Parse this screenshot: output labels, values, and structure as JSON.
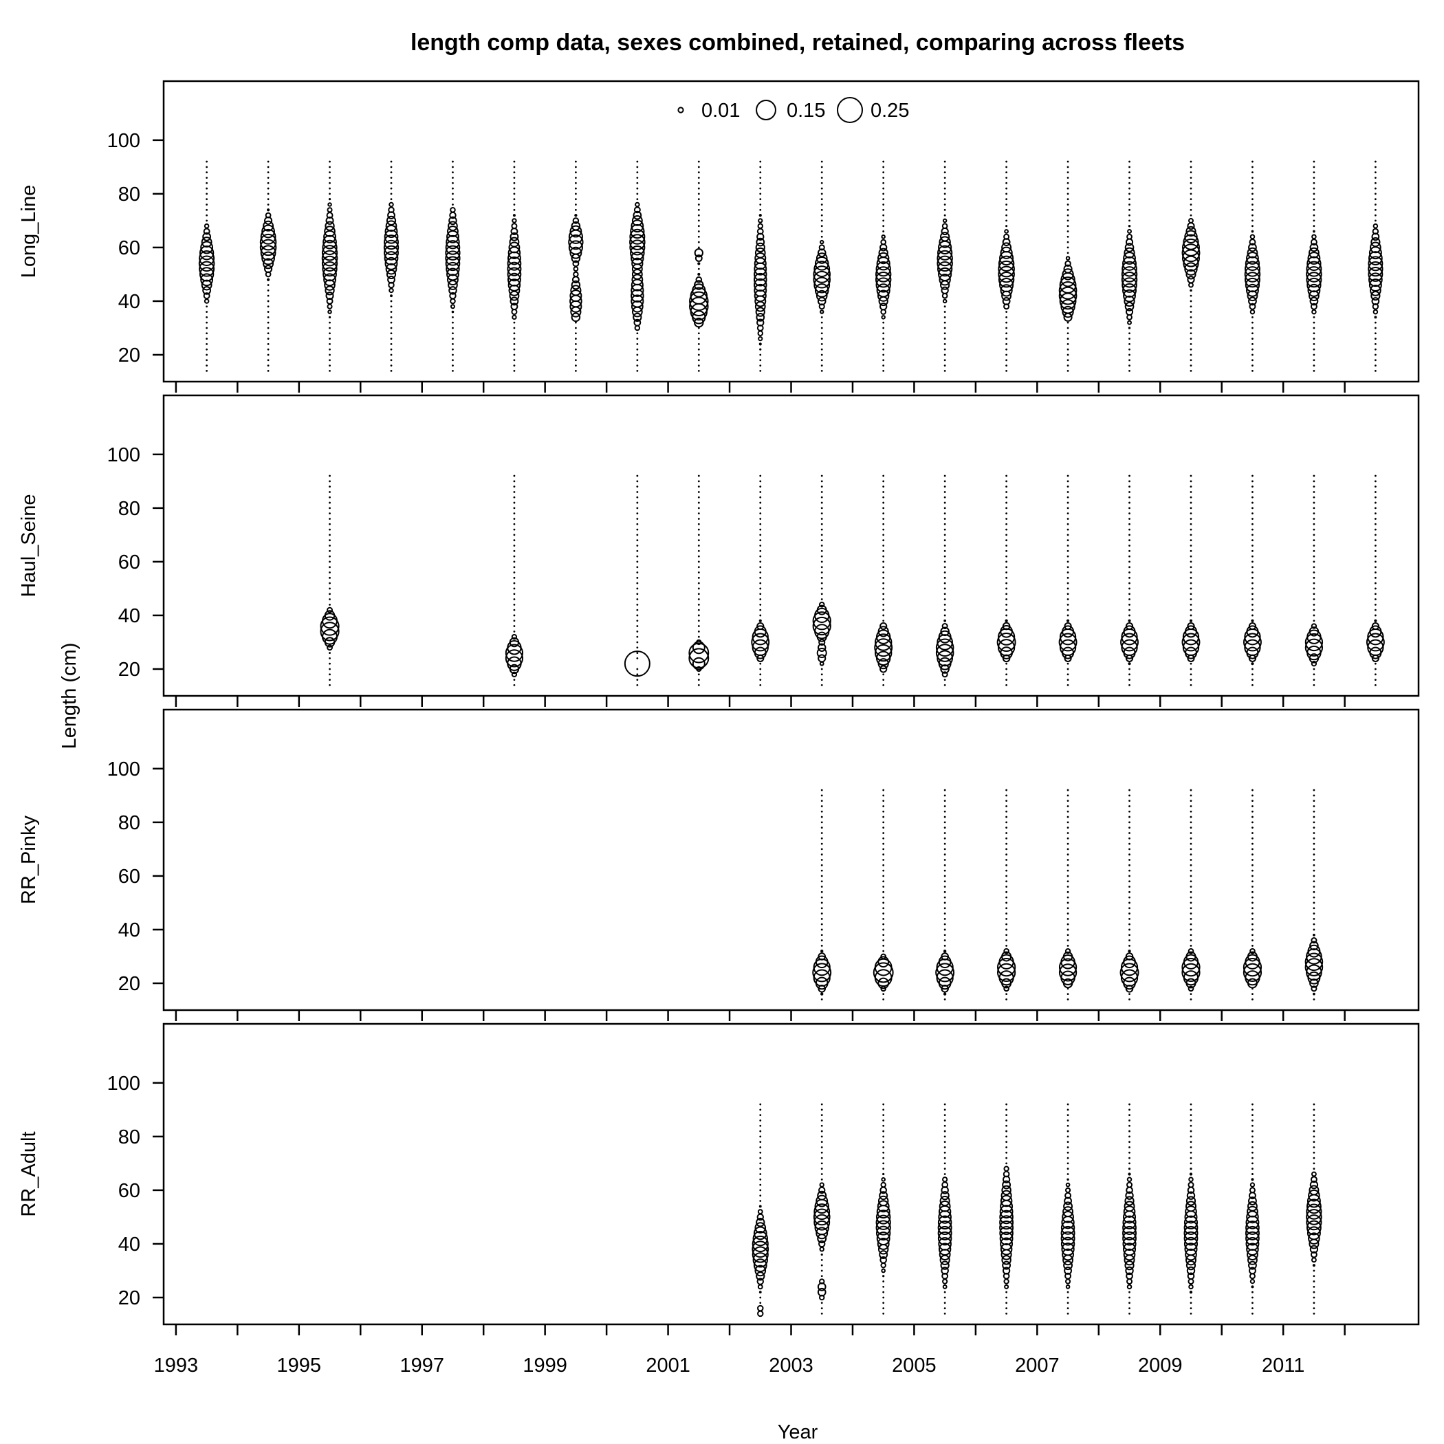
{
  "chart_data": {
    "type": "scatter",
    "subtype": "bubble",
    "title": "length comp data, sexes combined, retained, comparing across fleets",
    "xlabel": "Year",
    "ylabel": "Length (cm)",
    "xlim": [
      1992.8,
      2013.2
    ],
    "ylim": [
      10,
      122
    ],
    "x_ticks": [
      1993,
      1994,
      1995,
      1996,
      1997,
      1998,
      1999,
      2000,
      2001,
      2002,
      2003,
      2004,
      2005,
      2006,
      2007,
      2008,
      2009,
      2010,
      2011,
      2012
    ],
    "x_tick_labels": [
      "1993",
      "1995",
      "1997",
      "1999",
      "2001",
      "2003",
      "2005",
      "2007",
      "2009",
      "2011"
    ],
    "y_ticks": [
      20,
      40,
      60,
      80,
      100
    ],
    "y_tick_labels": [
      "20",
      "40",
      "60",
      "80",
      "100"
    ],
    "length_bins": {
      "min": 14,
      "max": 92,
      "step": 2
    },
    "legend": {
      "placement": "top-center",
      "values": [
        0.01,
        0.15,
        0.25
      ],
      "labels": [
        "0.01",
        "0.15",
        "0.25"
      ]
    },
    "series": [
      {
        "name": "Long_Line",
        "years": [
          {
            "year": 1993.5,
            "modes": [
              {
                "mean": 54,
                "sd": 6,
                "w": 1
              }
            ],
            "lo": 40,
            "hi": 68,
            "peak": 0.09
          },
          {
            "year": 1994.5,
            "modes": [
              {
                "mean": 61,
                "sd": 5,
                "w": 1
              }
            ],
            "lo": 44,
            "hi": 74,
            "peak": 0.1
          },
          {
            "year": 1995.5,
            "modes": [
              {
                "mean": 56,
                "sd": 8,
                "w": 1
              }
            ],
            "lo": 29,
            "hi": 78,
            "peak": 0.09
          },
          {
            "year": 1996.5,
            "modes": [
              {
                "mean": 60,
                "sd": 7,
                "w": 1
              }
            ],
            "lo": 38,
            "hi": 76,
            "peak": 0.08
          },
          {
            "year": 1997.5,
            "modes": [
              {
                "mean": 57,
                "sd": 8,
                "w": 1
              }
            ],
            "lo": 30,
            "hi": 74,
            "peak": 0.08
          },
          {
            "year": 1998.5,
            "modes": [
              {
                "mean": 52,
                "sd": 8,
                "w": 1
              }
            ],
            "lo": 34,
            "hi": 76,
            "peak": 0.07
          },
          {
            "year": 1999.5,
            "modes": [
              {
                "mean": 62,
                "sd": 4,
                "w": 0.6
              },
              {
                "mean": 40,
                "sd": 5,
                "w": 0.4
              }
            ],
            "lo": 34,
            "hi": 74,
            "peak": 0.08
          },
          {
            "year": 2000.5,
            "modes": [
              {
                "mean": 62,
                "sd": 6,
                "w": 0.6
              },
              {
                "mean": 42,
                "sd": 6,
                "w": 0.4
              }
            ],
            "lo": 30,
            "hi": 76,
            "peak": 0.09
          },
          {
            "year": 2001.5,
            "modes": [
              {
                "mean": 39,
                "sd": 4,
                "w": 0.85
              },
              {
                "mean": 58,
                "sd": 2,
                "w": 0.15
              }
            ],
            "lo": 32,
            "hi": 58,
            "peak": 0.14
          },
          {
            "year": 2002.5,
            "modes": [
              {
                "mean": 48,
                "sd": 10,
                "w": 1
              }
            ],
            "lo": 22,
            "hi": 72,
            "peak": 0.06
          },
          {
            "year": 2003.5,
            "modes": [
              {
                "mean": 49,
                "sd": 5,
                "w": 1
              }
            ],
            "lo": 36,
            "hi": 64,
            "peak": 0.11
          },
          {
            "year": 2004.5,
            "modes": [
              {
                "mean": 49,
                "sd": 6,
                "w": 1
              }
            ],
            "lo": 34,
            "hi": 80,
            "peak": 0.09
          },
          {
            "year": 2005.5,
            "modes": [
              {
                "mean": 55,
                "sd": 6,
                "w": 1
              }
            ],
            "lo": 38,
            "hi": 74,
            "peak": 0.09
          },
          {
            "year": 2006.5,
            "modes": [
              {
                "mean": 51,
                "sd": 6,
                "w": 1
              }
            ],
            "lo": 38,
            "hi": 68,
            "peak": 0.1
          },
          {
            "year": 2007.5,
            "modes": [
              {
                "mean": 43,
                "sd": 5,
                "w": 1
              }
            ],
            "lo": 34,
            "hi": 68,
            "peak": 0.12
          },
          {
            "year": 2008.5,
            "modes": [
              {
                "mean": 49,
                "sd": 7,
                "w": 1
              }
            ],
            "lo": 28,
            "hi": 68,
            "peak": 0.09
          },
          {
            "year": 2009.5,
            "modes": [
              {
                "mean": 58,
                "sd": 5,
                "w": 1
              }
            ],
            "lo": 32,
            "hi": 70,
            "peak": 0.12
          },
          {
            "year": 2010.5,
            "modes": [
              {
                "mean": 50,
                "sd": 6,
                "w": 1
              }
            ],
            "lo": 36,
            "hi": 68,
            "peak": 0.09
          },
          {
            "year": 2011.5,
            "modes": [
              {
                "mean": 50,
                "sd": 6,
                "w": 1
              }
            ],
            "lo": 36,
            "hi": 68,
            "peak": 0.09
          },
          {
            "year": 2012.5,
            "modes": [
              {
                "mean": 52,
                "sd": 7,
                "w": 1
              }
            ],
            "lo": 34,
            "hi": 68,
            "peak": 0.08
          }
        ]
      },
      {
        "name": "Haul_Seine",
        "years": [
          {
            "year": 1995.5,
            "modes": [
              {
                "mean": 35,
                "sd": 3,
                "w": 1
              }
            ],
            "lo": 28,
            "hi": 42,
            "peak": 0.14
          },
          {
            "year": 1998.5,
            "modes": [
              {
                "mean": 25,
                "sd": 3,
                "w": 1
              }
            ],
            "lo": 18,
            "hi": 56,
            "peak": 0.12
          },
          {
            "year": 2000.5,
            "modes": [
              {
                "mean": 22,
                "sd": 0.5,
                "w": 1
              }
            ],
            "lo": 20,
            "hi": 24,
            "peak": 0.25
          },
          {
            "year": 2001.5,
            "modes": [
              {
                "mean": 25,
                "sd": 2,
                "w": 1
              }
            ],
            "lo": 20,
            "hi": 30,
            "peak": 0.17
          },
          {
            "year": 2002.5,
            "modes": [
              {
                "mean": 30,
                "sd": 3,
                "w": 1
              }
            ],
            "lo": 24,
            "hi": 38,
            "peak": 0.12
          },
          {
            "year": 2003.5,
            "modes": [
              {
                "mean": 37,
                "sd": 3,
                "w": 0.8
              },
              {
                "mean": 26,
                "sd": 2,
                "w": 0.2
              }
            ],
            "lo": 22,
            "hi": 52,
            "peak": 0.13
          },
          {
            "year": 2004.5,
            "modes": [
              {
                "mean": 28,
                "sd": 4,
                "w": 1
              }
            ],
            "lo": 20,
            "hi": 36,
            "peak": 0.12
          },
          {
            "year": 2005.5,
            "modes": [
              {
                "mean": 27,
                "sd": 4,
                "w": 1
              }
            ],
            "lo": 18,
            "hi": 40,
            "peak": 0.12
          },
          {
            "year": 2006.5,
            "modes": [
              {
                "mean": 30,
                "sd": 3,
                "w": 1
              }
            ],
            "lo": 24,
            "hi": 46,
            "peak": 0.13
          },
          {
            "year": 2007.5,
            "modes": [
              {
                "mean": 30,
                "sd": 3,
                "w": 1
              }
            ],
            "lo": 24,
            "hi": 38,
            "peak": 0.12
          },
          {
            "year": 2008.5,
            "modes": [
              {
                "mean": 30,
                "sd": 3,
                "w": 1
              }
            ],
            "lo": 22,
            "hi": 46,
            "peak": 0.12
          },
          {
            "year": 2009.5,
            "modes": [
              {
                "mean": 30,
                "sd": 3,
                "w": 1
              }
            ],
            "lo": 24,
            "hi": 52,
            "peak": 0.12
          },
          {
            "year": 2010.5,
            "modes": [
              {
                "mean": 30,
                "sd": 3,
                "w": 1
              }
            ],
            "lo": 22,
            "hi": 40,
            "peak": 0.12
          },
          {
            "year": 2011.5,
            "modes": [
              {
                "mean": 29,
                "sd": 3,
                "w": 1
              }
            ],
            "lo": 22,
            "hi": 46,
            "peak": 0.12
          },
          {
            "year": 2012.5,
            "modes": [
              {
                "mean": 30,
                "sd": 3,
                "w": 1
              }
            ],
            "lo": 24,
            "hi": 38,
            "peak": 0.12
          }
        ]
      },
      {
        "name": "RR_Pinky",
        "years": [
          {
            "year": 2003.5,
            "modes": [
              {
                "mean": 24,
                "sd": 3,
                "w": 1
              }
            ],
            "lo": 16,
            "hi": 66,
            "peak": 0.13
          },
          {
            "year": 2004.5,
            "modes": [
              {
                "mean": 24,
                "sd": 2.5,
                "w": 1
              }
            ],
            "lo": 16,
            "hi": 48,
            "peak": 0.15
          },
          {
            "year": 2005.5,
            "modes": [
              {
                "mean": 24,
                "sd": 3,
                "w": 1
              }
            ],
            "lo": 16,
            "hi": 58,
            "peak": 0.13
          },
          {
            "year": 2006.5,
            "modes": [
              {
                "mean": 25,
                "sd": 3,
                "w": 1
              }
            ],
            "lo": 16,
            "hi": 56,
            "peak": 0.13
          },
          {
            "year": 2007.5,
            "modes": [
              {
                "mean": 25,
                "sd": 3,
                "w": 1
              }
            ],
            "lo": 20,
            "hi": 68,
            "peak": 0.12
          },
          {
            "year": 2008.5,
            "modes": [
              {
                "mean": 24,
                "sd": 3,
                "w": 1
              }
            ],
            "lo": 18,
            "hi": 68,
            "peak": 0.13
          },
          {
            "year": 2009.5,
            "modes": [
              {
                "mean": 25,
                "sd": 3,
                "w": 1
              }
            ],
            "lo": 18,
            "hi": 60,
            "peak": 0.13
          },
          {
            "year": 2010.5,
            "modes": [
              {
                "mean": 25,
                "sd": 3,
                "w": 1
              }
            ],
            "lo": 20,
            "hi": 68,
            "peak": 0.13
          },
          {
            "year": 2011.5,
            "modes": [
              {
                "mean": 27,
                "sd": 4,
                "w": 1
              }
            ],
            "lo": 16,
            "hi": 66,
            "peak": 0.12
          }
        ]
      },
      {
        "name": "RR_Adult",
        "years": [
          {
            "year": 2002.5,
            "modes": [
              {
                "mean": 38,
                "sd": 6,
                "w": 0.85
              },
              {
                "mean": 15,
                "sd": 1,
                "w": 0.15
              }
            ],
            "lo": 14,
            "hi": 70,
            "peak": 0.1
          },
          {
            "year": 2003.5,
            "modes": [
              {
                "mean": 50,
                "sd": 5,
                "w": 0.8
              },
              {
                "mean": 23,
                "sd": 2,
                "w": 0.2
              }
            ],
            "lo": 20,
            "hi": 62,
            "peak": 0.1
          },
          {
            "year": 2004.5,
            "modes": [
              {
                "mean": 47,
                "sd": 7,
                "w": 1
              }
            ],
            "lo": 24,
            "hi": 68,
            "peak": 0.08
          },
          {
            "year": 2005.5,
            "modes": [
              {
                "mean": 45,
                "sd": 9,
                "w": 1
              }
            ],
            "lo": 24,
            "hi": 64,
            "peak": 0.07
          },
          {
            "year": 2006.5,
            "modes": [
              {
                "mean": 47,
                "sd": 10,
                "w": 1
              }
            ],
            "lo": 24,
            "hi": 68,
            "peak": 0.07
          },
          {
            "year": 2007.5,
            "modes": [
              {
                "mean": 43,
                "sd": 8,
                "w": 1
              }
            ],
            "lo": 24,
            "hi": 68,
            "peak": 0.07
          },
          {
            "year": 2008.5,
            "modes": [
              {
                "mean": 44,
                "sd": 9,
                "w": 1
              }
            ],
            "lo": 24,
            "hi": 68,
            "peak": 0.07
          },
          {
            "year": 2009.5,
            "modes": [
              {
                "mean": 44,
                "sd": 9,
                "w": 1
              }
            ],
            "lo": 22,
            "hi": 68,
            "peak": 0.07
          },
          {
            "year": 2010.5,
            "modes": [
              {
                "mean": 44,
                "sd": 8,
                "w": 1
              }
            ],
            "lo": 22,
            "hi": 66,
            "peak": 0.07
          },
          {
            "year": 2011.5,
            "modes": [
              {
                "mean": 50,
                "sd": 7,
                "w": 1
              }
            ],
            "lo": 26,
            "hi": 66,
            "peak": 0.09
          }
        ]
      }
    ]
  }
}
